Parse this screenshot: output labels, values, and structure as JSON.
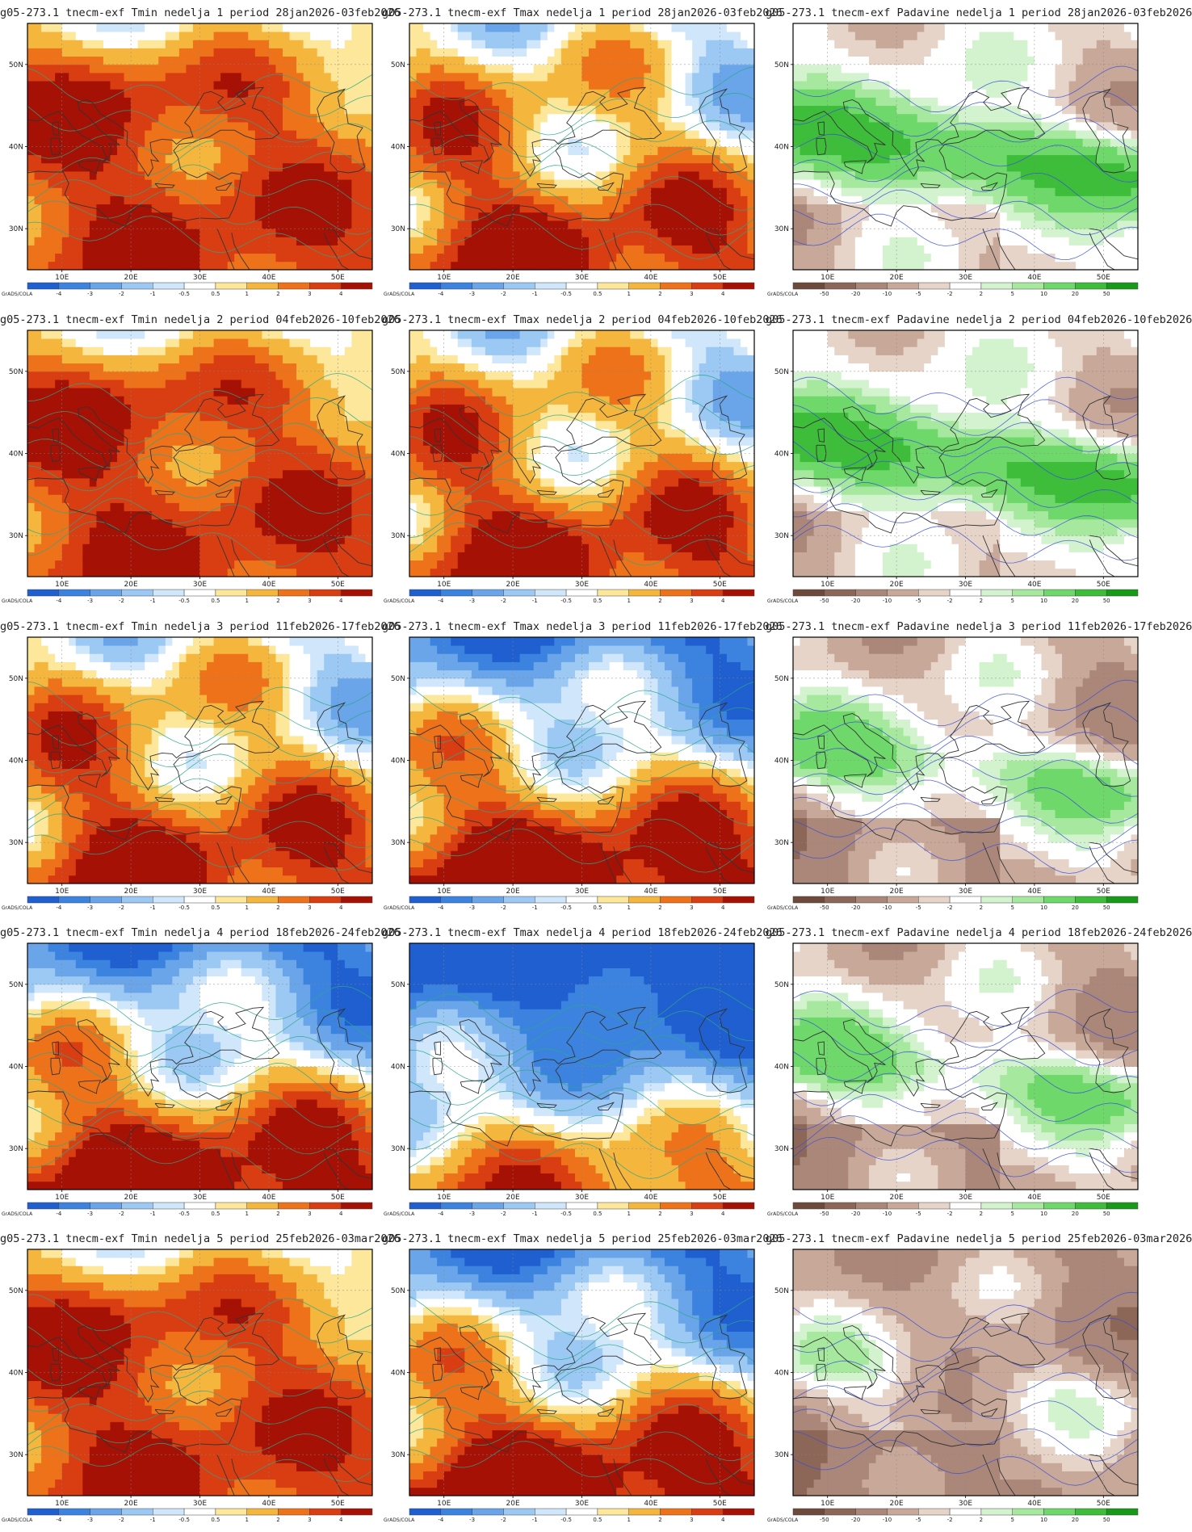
{
  "credit": "GrADS/COLA",
  "lon_ticks": [
    "10E",
    "20E",
    "30E",
    "40E",
    "50E"
  ],
  "lat_ticks": [
    "30N",
    "40N",
    "50N"
  ],
  "temp_scale": {
    "labels": [
      "-4",
      "-3",
      "-2",
      "-1",
      "-0.5",
      "0.5",
      "1",
      "2",
      "3",
      "4"
    ],
    "colors": [
      "#1f5fcf",
      "#3c83e0",
      "#6aa5ea",
      "#9cc8f4",
      "#cfe6fb",
      "#ffffff",
      "#fde79a",
      "#f5b63d",
      "#ee7219",
      "#d93d12",
      "#a51104"
    ]
  },
  "precip_scale": {
    "labels": [
      "-50",
      "-20",
      "-10",
      "-5",
      "-2",
      "2",
      "5",
      "10",
      "20",
      "50"
    ],
    "colors": [
      "#6e4a3c",
      "#8c6656",
      "#aa8778",
      "#c8a898",
      "#e7d4c9",
      "#ffffff",
      "#d3f3cf",
      "#a7e89f",
      "#6ed86a",
      "#3dbd3a",
      "#169a17"
    ]
  },
  "panels": [
    {
      "title": "g05-273.1 tnecm-exf Tmin nedelja 1 period 28jan2026-03feb2026",
      "kind": "temp",
      "state": "warm"
    },
    {
      "title": "g05-273.1 tnecm-exf Tmax nedelja 1 period 28jan2026-03feb2026",
      "kind": "temp",
      "state": "mixed"
    },
    {
      "title": "g05-273.1 tnecm-exf Padavine nedelja 1 period 28jan2026-03feb2026",
      "kind": "precip",
      "state": "wet"
    },
    {
      "title": "g05-273.1 tnecm-exf Tmin nedelja 2 period 04feb2026-10feb2026",
      "kind": "temp",
      "state": "warm"
    },
    {
      "title": "g05-273.1 tnecm-exf Tmax nedelja 2 period 04feb2026-10feb2026",
      "kind": "temp",
      "state": "mixed"
    },
    {
      "title": "g05-273.1 tnecm-exf Padavine nedelja 2 period 04feb2026-10feb2026",
      "kind": "precip",
      "state": "wet"
    },
    {
      "title": "g05-273.1 tnecm-exf Tmin nedelja 3 period 11feb2026-17feb2026",
      "kind": "temp",
      "state": "mixed"
    },
    {
      "title": "g05-273.1 tnecm-exf Tmax nedelja 3 period 11feb2026-17feb2026",
      "kind": "temp",
      "state": "cool"
    },
    {
      "title": "g05-273.1 tnecm-exf Padavine nedelja 3 period 11feb2026-17feb2026",
      "kind": "precip",
      "state": "mixed"
    },
    {
      "title": "g05-273.1 tnecm-exf Tmin nedelja 4 period 18feb2026-24feb2026",
      "kind": "temp",
      "state": "cool"
    },
    {
      "title": "g05-273.1 tnecm-exf Tmax nedelja 4 period 18feb2026-24feb2026",
      "kind": "temp",
      "state": "cold"
    },
    {
      "title": "g05-273.1 tnecm-exf Padavine nedelja 4 period 18feb2026-24feb2026",
      "kind": "precip",
      "state": "mixed"
    },
    {
      "title": "g05-273.1 tnecm-exf Tmin nedelja 5 period 25feb2026-03mar2026",
      "kind": "temp",
      "state": "warm"
    },
    {
      "title": "g05-273.1 tnecm-exf Tmax nedelja 5 period 25feb2026-03mar2026",
      "kind": "temp",
      "state": "cool"
    },
    {
      "title": "g05-273.1 tnecm-exf Padavine nedelja 5 period 25feb2026-03mar2026",
      "kind": "precip",
      "state": "dry"
    }
  ]
}
